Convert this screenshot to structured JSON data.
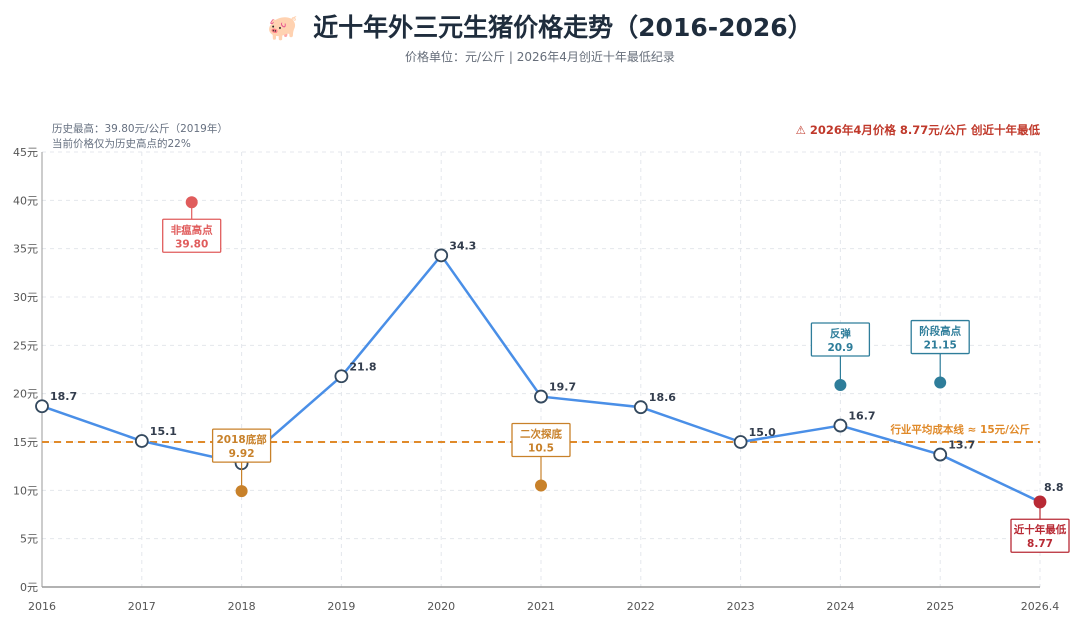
{
  "chart_data": {
    "type": "line",
    "title_icon": "🐖",
    "title": "近十年外三元生猪价格走势（2016-2026）",
    "subtitle": "价格单位：元/公斤 | 2026年4月创近十年最低纪录",
    "categories": [
      "2016",
      "2017",
      "2018",
      "2019",
      "2020",
      "2021",
      "2022",
      "2023",
      "2024",
      "2025",
      "2026.4"
    ],
    "series": [
      {
        "name": "外三元生猪价格",
        "values": [
          18.7,
          15.1,
          12.8,
          21.8,
          34.3,
          19.7,
          18.6,
          15.0,
          16.7,
          13.7,
          8.8
        ],
        "labels": [
          "18.7",
          "15.1",
          "",
          "21.8",
          "34.3",
          "19.7",
          "18.6",
          "15.0",
          "16.7",
          "13.7",
          "8.8"
        ]
      }
    ],
    "y_ticks": [
      0,
      5,
      10,
      15,
      20,
      25,
      30,
      35,
      40,
      45
    ],
    "y_unit": "元",
    "ylim": [
      0,
      45
    ],
    "grid": true,
    "reference_line": {
      "value": 15,
      "label": "行业平均成本线 ≈ 15元/公斤",
      "color": "#e08a2a"
    },
    "notes": [
      "历史最高：39.80元/公斤（2019年）",
      "当前价格仅为历史高点的22%"
    ],
    "alert": "⚠ 2026年4月价格 8.77元/公斤 创近十年最低",
    "annotations": [
      {
        "x_index": 1.5,
        "value": 39.8,
        "label": "非瘟高点",
        "value_text": "39.80",
        "color": "#e05c5c",
        "box": "below"
      },
      {
        "x_index": 2,
        "value": 9.92,
        "label": "2018底部",
        "value_text": "9.92",
        "color": "#c8812a",
        "box": "above"
      },
      {
        "x_index": 5,
        "value": 10.5,
        "label": "二次探底",
        "value_text": "10.5",
        "color": "#c8812a",
        "box": "above"
      },
      {
        "x_index": 8,
        "value": 20.9,
        "label": "反弹",
        "value_text": "20.9",
        "color": "#2e7d9a",
        "box": "above"
      },
      {
        "x_index": 9,
        "value": 21.15,
        "label": "阶段高点",
        "value_text": "21.15",
        "color": "#2e7d9a",
        "box": "above"
      },
      {
        "x_index": 10,
        "value": 8.77,
        "label": "近十年最低",
        "value_text": "8.77",
        "color": "#b82a35",
        "box": "below"
      }
    ],
    "colors": {
      "line": "#4a8fe7",
      "point_fill": "#ffffff",
      "point_stroke": "#34495e",
      "grid": "#e4e7ec",
      "axis": "#999999"
    }
  }
}
